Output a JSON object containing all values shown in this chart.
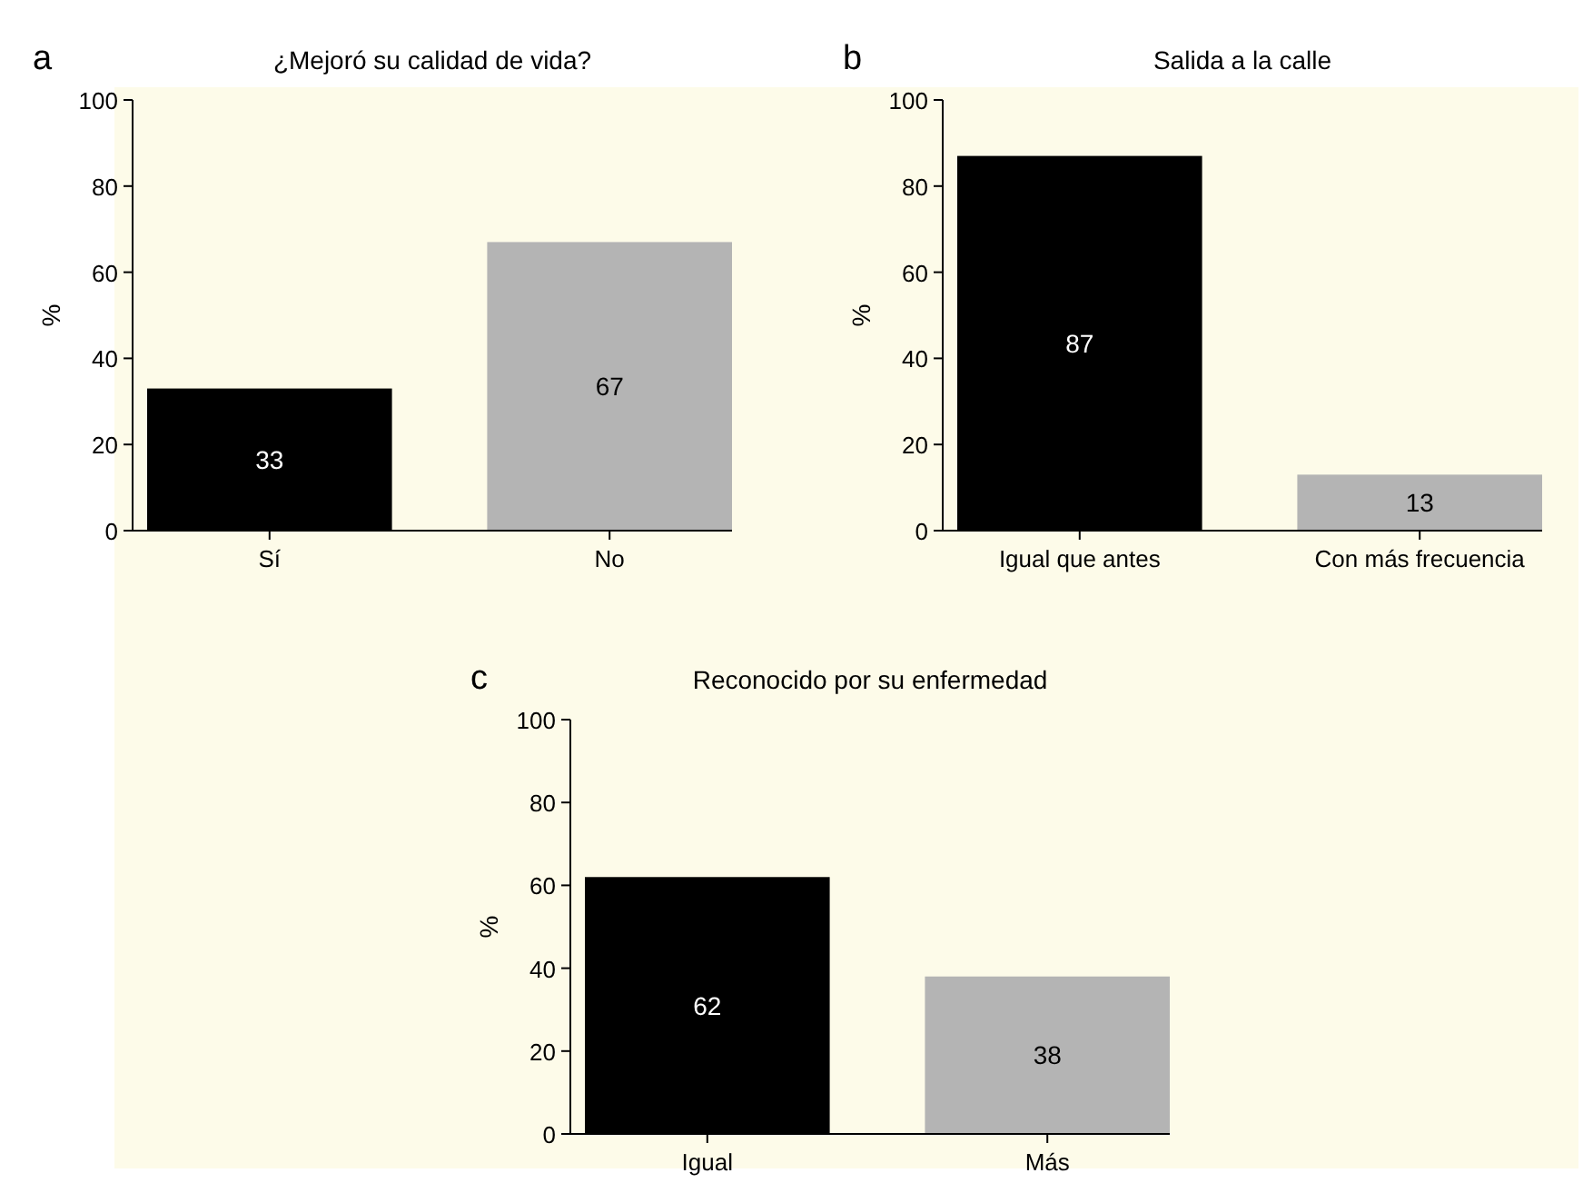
{
  "chart_data": [
    {
      "type": "bar",
      "title": "¿Mejoró su calidad de vida?",
      "ylabel": "%",
      "annotations": [
        "a"
      ],
      "categories": [
        "Sí",
        "No"
      ],
      "values": [
        33,
        67
      ],
      "colors": [
        "#000000",
        "#b4b4b4"
      ],
      "ylim": [
        0,
        100
      ],
      "yticks": [
        0,
        20,
        40,
        60,
        80,
        100
      ],
      "data_labels": true
    },
    {
      "type": "bar",
      "title": "Salida a la calle",
      "ylabel": "%",
      "annotations": [
        "b"
      ],
      "categories": [
        "Igual que antes",
        "Con más frecuencia"
      ],
      "values": [
        87,
        13
      ],
      "colors": [
        "#000000",
        "#b4b4b4"
      ],
      "ylim": [
        0,
        100
      ],
      "yticks": [
        0,
        20,
        40,
        60,
        80,
        100
      ],
      "data_labels": true
    },
    {
      "type": "bar",
      "title": "Reconocido por su enfermedad",
      "ylabel": "%",
      "annotations": [
        "c"
      ],
      "categories": [
        "Igual",
        "Más"
      ],
      "values": [
        62,
        38
      ],
      "colors": [
        "#000000",
        "#b4b4b4"
      ],
      "ylim": [
        0,
        100
      ],
      "yticks": [
        0,
        20,
        40,
        60,
        80,
        100
      ],
      "data_labels": true
    }
  ]
}
